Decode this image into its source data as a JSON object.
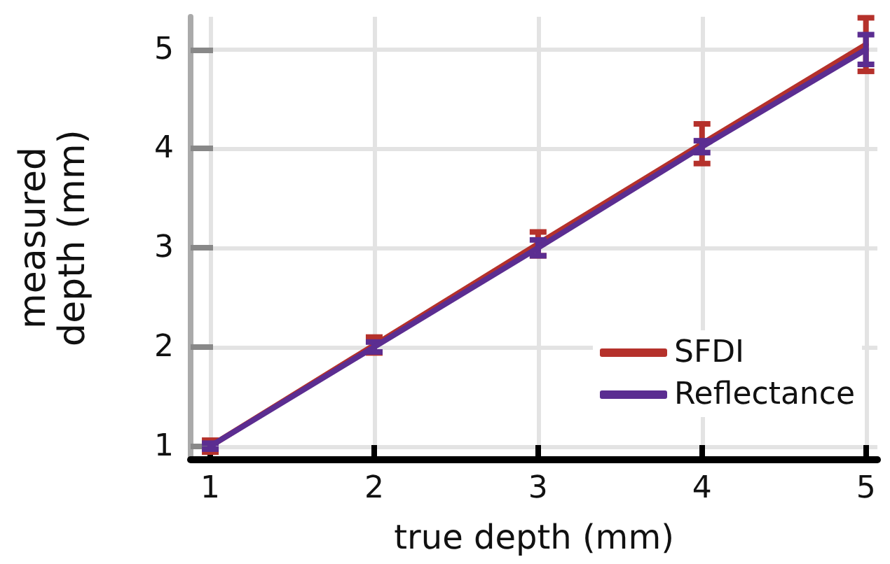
{
  "chart_data": {
    "type": "line",
    "xlabel": "true depth (mm)",
    "ylabel": "measured\ndepth (mm)",
    "x": [
      1,
      2,
      3,
      4,
      5
    ],
    "series": [
      {
        "name": "SFDI",
        "color": "#b5312b",
        "values": [
          1.0,
          2.02,
          3.04,
          4.05,
          5.05
        ],
        "errors": [
          0.06,
          0.08,
          0.12,
          0.2,
          0.27
        ]
      },
      {
        "name": "Reflectance",
        "color": "#5b2d91",
        "values": [
          1.0,
          2.0,
          3.0,
          4.02,
          5.0
        ],
        "errors": [
          0.03,
          0.05,
          0.08,
          0.06,
          0.15
        ]
      }
    ],
    "xlim": [
      0.88,
      5.07
    ],
    "xticks": [
      1,
      2,
      3,
      4,
      5
    ],
    "ylim": [
      0.87,
      5.33
    ],
    "yticks": [
      1,
      2,
      3,
      4,
      5
    ],
    "grid": true,
    "legend": "bottom right",
    "marker": "none",
    "line_style": "solid"
  }
}
